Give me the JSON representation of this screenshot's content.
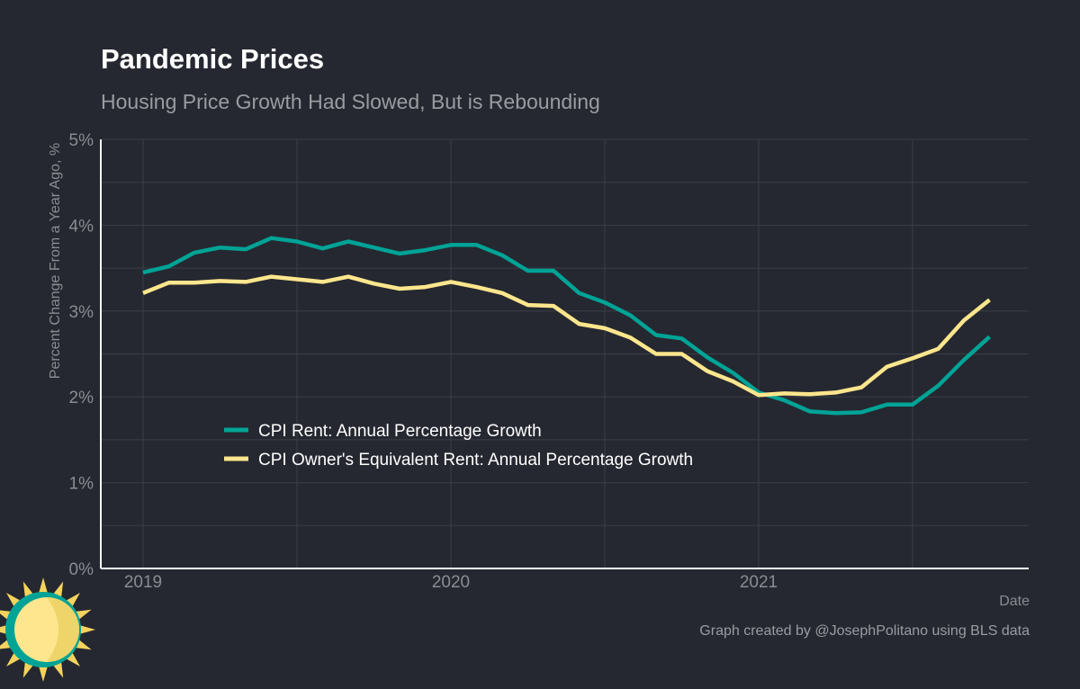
{
  "title": "Pandemic Prices",
  "subtitle": "Housing Price Growth Had Slowed, But is Rebounding",
  "caption": "Graph created by @JosephPolitano using BLS data",
  "colors": {
    "background": "#252830",
    "rent": "#00a396",
    "oer": "#fde68d",
    "grid": "#3b3e46"
  },
  "chart_data": {
    "type": "line",
    "title": "Pandemic Prices",
    "subtitle": "Housing Price Growth Had Slowed, But is Rebounding",
    "xlabel": "Date",
    "ylabel": "Percent Change From a Year Ago, %",
    "ylim": [
      0,
      5
    ],
    "yticks": [
      "0%",
      "1%",
      "2%",
      "3%",
      "4%",
      "5%"
    ],
    "xticks": [
      "2019",
      "2020",
      "2021"
    ],
    "grid": true,
    "legend_position": "inside-bottom-left",
    "x": [
      "2019-01",
      "2019-02",
      "2019-03",
      "2019-04",
      "2019-05",
      "2019-06",
      "2019-07",
      "2019-08",
      "2019-09",
      "2019-10",
      "2019-11",
      "2019-12",
      "2020-01",
      "2020-02",
      "2020-03",
      "2020-04",
      "2020-05",
      "2020-06",
      "2020-07",
      "2020-08",
      "2020-09",
      "2020-10",
      "2020-11",
      "2020-12",
      "2021-01",
      "2021-02",
      "2021-03",
      "2021-04",
      "2021-05",
      "2021-06",
      "2021-07",
      "2021-08",
      "2021-09",
      "2021-10"
    ],
    "series": [
      {
        "name": "CPI Rent: Annual Percentage Growth",
        "color": "#00a396",
        "values": [
          3.45,
          3.52,
          3.68,
          3.74,
          3.72,
          3.85,
          3.81,
          3.73,
          3.81,
          3.74,
          3.67,
          3.71,
          3.77,
          3.77,
          3.65,
          3.47,
          3.47,
          3.21,
          3.1,
          2.95,
          2.72,
          2.68,
          2.46,
          2.28,
          2.05,
          1.96,
          1.83,
          1.81,
          1.82,
          1.91,
          1.91,
          2.13,
          2.43,
          2.7
        ]
      },
      {
        "name": "CPI Owner's Equivalent Rent: Annual Percentage Growth",
        "color": "#fde68d",
        "values": [
          3.21,
          3.33,
          3.33,
          3.35,
          3.34,
          3.4,
          3.37,
          3.34,
          3.4,
          3.32,
          3.26,
          3.28,
          3.34,
          3.28,
          3.21,
          3.07,
          3.06,
          2.85,
          2.8,
          2.69,
          2.5,
          2.5,
          2.3,
          2.18,
          2.02,
          2.04,
          2.03,
          2.05,
          2.11,
          2.35,
          2.45,
          2.56,
          2.89,
          3.13
        ]
      }
    ]
  }
}
